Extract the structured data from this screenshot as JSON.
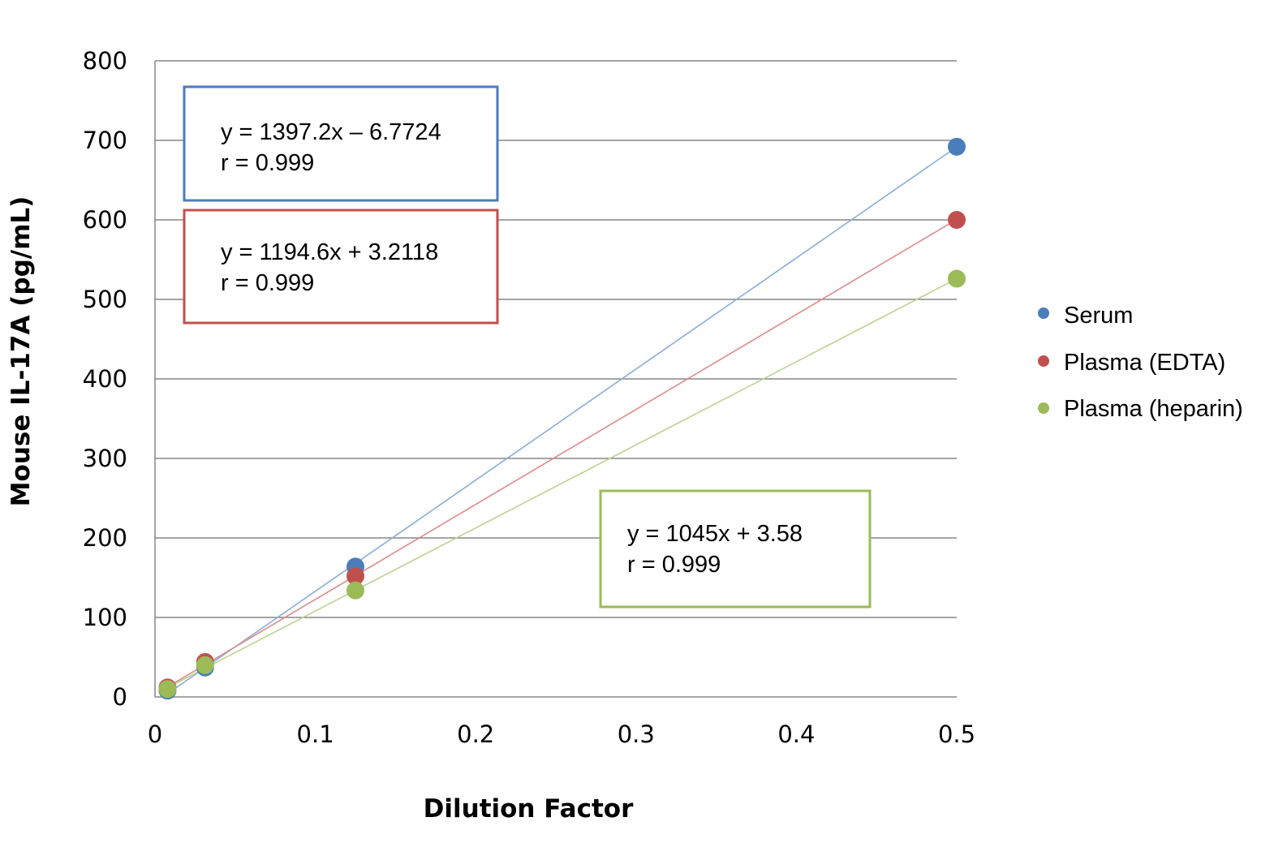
{
  "chart_data": {
    "type": "scatter",
    "title": "",
    "xlabel": "Dilution Factor",
    "ylabel": "Mouse IL-17A (pg/mL)",
    "xlim": [
      0,
      0.5
    ],
    "ylim": [
      0,
      800
    ],
    "xticks": [
      "0",
      "0.1",
      "0.2",
      "0.3",
      "0.4",
      "0.5"
    ],
    "yticks": [
      "0",
      "100",
      "200",
      "300",
      "400",
      "500",
      "600",
      "700",
      "800"
    ],
    "grid": "horizontal",
    "legend_position": "right",
    "series": [
      {
        "name": "Serum",
        "color": "#4a7ebb",
        "line_color": "#8aaed8",
        "x": [
          0.0078125,
          0.03125,
          0.125,
          0.5
        ],
        "y": [
          8,
          37,
          164,
          692
        ],
        "equation": "y = 1397.2x – 6.7724",
        "r": "r = 0.999",
        "slope": 1397.2,
        "intercept": -6.7724
      },
      {
        "name": "Plasma (EDTA)",
        "color": "#c0504d",
        "line_color": "#dd8c8a",
        "x": [
          0.0078125,
          0.03125,
          0.125,
          0.5
        ],
        "y": [
          12,
          44,
          152,
          600
        ],
        "equation": "y = 1194.6x + 3.2118",
        "r": "r = 0.999",
        "slope": 1194.6,
        "intercept": 3.2118
      },
      {
        "name": "Plasma (heparin)",
        "color": "#9bbb59",
        "line_color": "#bcd38f",
        "x": [
          0.0078125,
          0.03125,
          0.125,
          0.5
        ],
        "y": [
          10,
          40,
          134,
          526
        ],
        "equation": "y = 1045x + 3.58",
        "r": "r = 0.999",
        "slope": 1045,
        "intercept": 3.58
      }
    ]
  }
}
